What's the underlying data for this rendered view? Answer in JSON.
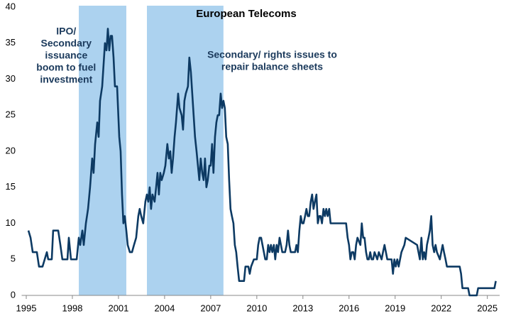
{
  "chart_data": {
    "type": "line",
    "title": "European Telecoms",
    "annotations": [
      {
        "at": 1997.6,
        "lines": [
          "IPO/",
          "Secondary",
          "issuance",
          "boom to fuel",
          "investment"
        ]
      },
      {
        "at": 2011.0,
        "lines": [
          "Secondary/ rights issues to",
          "repair balance sheets"
        ]
      }
    ],
    "shaded_periods": [
      {
        "from": 1998.42,
        "to": 2001.51
      },
      {
        "from": 2002.85,
        "to": 2007.83
      }
    ],
    "shade_color": "#acd2ef",
    "x": [
      1995.14,
      1995.28,
      1995.42,
      1995.69,
      1995.83,
      1996.06,
      1996.2,
      1996.34,
      1996.43,
      1996.66,
      1996.75,
      1997.08,
      1997.22,
      1997.35,
      1997.68,
      1997.77,
      1997.91,
      1998.28,
      1998.42,
      1998.51,
      1998.65,
      1998.74,
      1998.88,
      1999.02,
      1999.15,
      1999.29,
      1999.38,
      1999.48,
      1999.62,
      1999.71,
      1999.8,
      1999.94,
      2000.03,
      2000.12,
      2000.22,
      2000.31,
      2000.4,
      2000.49,
      2000.58,
      2000.68,
      2000.77,
      2000.91,
      2001.05,
      2001.14,
      2001.23,
      2001.32,
      2001.41,
      2001.51,
      2001.6,
      2001.74,
      2001.88,
      2002.01,
      2002.15,
      2002.29,
      2002.38,
      2002.48,
      2002.61,
      2002.75,
      2002.85,
      2002.94,
      2003.03,
      2003.12,
      2003.21,
      2003.35,
      2003.45,
      2003.54,
      2003.63,
      2003.72,
      2003.81,
      2003.95,
      2004.05,
      2004.18,
      2004.28,
      2004.37,
      2004.46,
      2004.55,
      2004.65,
      2004.74,
      2004.88,
      2004.97,
      2005.11,
      2005.2,
      2005.29,
      2005.38,
      2005.52,
      2005.61,
      2005.71,
      2005.8,
      2005.89,
      2005.98,
      2006.08,
      2006.17,
      2006.26,
      2006.35,
      2006.45,
      2006.54,
      2006.63,
      2006.72,
      2006.81,
      2006.91,
      2007.0,
      2007.09,
      2007.18,
      2007.28,
      2007.37,
      2007.46,
      2007.55,
      2007.65,
      2007.74,
      2007.83,
      2007.92,
      2008.01,
      2008.11,
      2008.2,
      2008.29,
      2008.38,
      2008.48,
      2008.57,
      2008.66,
      2008.75,
      2008.85,
      2009.17,
      2009.26,
      2009.45,
      2009.54,
      2009.63,
      2009.81,
      2010.0,
      2010.09,
      2010.18,
      2010.28,
      2010.37,
      2010.46,
      2010.55,
      2010.65,
      2010.74,
      2010.83,
      2010.92,
      2011.01,
      2011.11,
      2011.2,
      2011.29,
      2011.38,
      2011.48,
      2011.57,
      2011.66,
      2011.84,
      2011.94,
      2012.03,
      2012.12,
      2012.21,
      2012.49,
      2012.58,
      2012.67,
      2012.77,
      2012.86,
      2012.95,
      2013.04,
      2013.14,
      2013.23,
      2013.32,
      2013.41,
      2013.51,
      2013.6,
      2013.69,
      2013.78,
      2013.88,
      2013.97,
      2014.06,
      2014.15,
      2014.24,
      2014.34,
      2014.43,
      2014.52,
      2014.61,
      2014.71,
      2014.8,
      2015.81,
      2015.91,
      2016.0,
      2016.09,
      2016.18,
      2016.28,
      2016.37,
      2016.46,
      2016.55,
      2016.74,
      2016.83,
      2016.92,
      2017.01,
      2017.11,
      2017.2,
      2017.29,
      2017.38,
      2017.47,
      2017.57,
      2017.66,
      2017.84,
      2017.94,
      2018.12,
      2018.21,
      2018.31,
      2018.4,
      2018.49,
      2018.77,
      2018.86,
      2018.95,
      2019.04,
      2019.14,
      2019.23,
      2019.32,
      2019.41,
      2019.6,
      2019.69,
      2020.43,
      2020.52,
      2020.61,
      2020.71,
      2020.8,
      2020.89,
      2020.98,
      2021.07,
      2021.17,
      2021.26,
      2021.35,
      2021.44,
      2021.54,
      2021.63,
      2021.72,
      2021.91,
      2022.0,
      2022.09,
      2022.18,
      2022.28,
      2022.37,
      2023.2,
      2023.29,
      2023.38,
      2023.75,
      2023.84,
      2024.31,
      2024.4,
      2025.46,
      2025.55
    ],
    "series": [
      {
        "color": "#0d3a63",
        "values": [
          9,
          8,
          6,
          6,
          4,
          4,
          5,
          6,
          5,
          5,
          9,
          9,
          7,
          5,
          5,
          8,
          5,
          5,
          8,
          7,
          9,
          7,
          10,
          12,
          15,
          19,
          17,
          21,
          24,
          22,
          27,
          29,
          32,
          35,
          34,
          37,
          34,
          36,
          36,
          33,
          29,
          29,
          22,
          20,
          14,
          10,
          11,
          9,
          7,
          6,
          6,
          7,
          8,
          11,
          12,
          11,
          10,
          13,
          14,
          13,
          15,
          12,
          14,
          13,
          15,
          17,
          14,
          17,
          16,
          17,
          18,
          21,
          19,
          20,
          17,
          19,
          22,
          24,
          28,
          26,
          25,
          23,
          27,
          28,
          29,
          33,
          31,
          28,
          25,
          22,
          20,
          18,
          16,
          19,
          17,
          16,
          19,
          15,
          16,
          18,
          18,
          21,
          17,
          22,
          24,
          25,
          25,
          28,
          26,
          27,
          26,
          22,
          21,
          16,
          12,
          11,
          10,
          7,
          6,
          4,
          2,
          2,
          4,
          4,
          3,
          4,
          5,
          5,
          7,
          8,
          8,
          7,
          6,
          5,
          5,
          7,
          6,
          7,
          6,
          7,
          5,
          7,
          6,
          8,
          7,
          6,
          6,
          7,
          9,
          7,
          6,
          6,
          7,
          6,
          9,
          11,
          10,
          10,
          11,
          12,
          11,
          11,
          13,
          14,
          12,
          13,
          14,
          10,
          11,
          11,
          10,
          12,
          11,
          12,
          11,
          12,
          10,
          10,
          8,
          7,
          5,
          6,
          6,
          5,
          7,
          8,
          7,
          10,
          8,
          8,
          6,
          5,
          5,
          6,
          5,
          5,
          6,
          5,
          6,
          5,
          6,
          7,
          6,
          5,
          5,
          3,
          5,
          4,
          5,
          4,
          5,
          6,
          7,
          8,
          7,
          6,
          5,
          8,
          5,
          6,
          5,
          7,
          8,
          9,
          11,
          7,
          6,
          7,
          6,
          5,
          6,
          7,
          6,
          5,
          4,
          4,
          3,
          1,
          1,
          0,
          0,
          1,
          1,
          2
        ]
      }
    ],
    "xlim": [
      1994.7,
      2025.8
    ],
    "xticks": [
      1995,
      1998,
      2001,
      2004,
      2007,
      2010,
      2013,
      2016,
      2019,
      2022,
      2025
    ],
    "ylim": [
      0,
      40
    ],
    "yticks": [
      0,
      5,
      10,
      15,
      20,
      25,
      30,
      35,
      40
    ]
  }
}
